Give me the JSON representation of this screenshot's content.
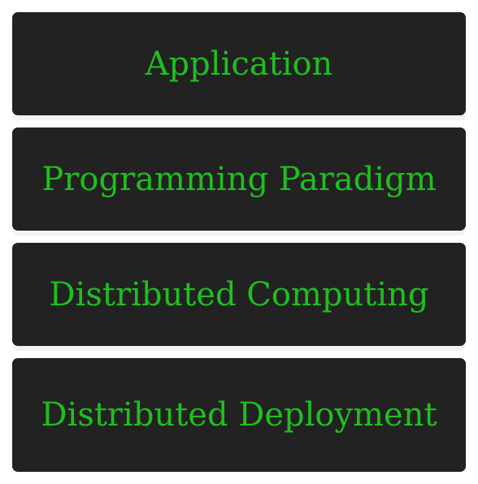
{
  "diagram": {
    "layers": [
      {
        "label": "Application"
      },
      {
        "label": "Programming Paradigm"
      },
      {
        "label": "Distributed Computing"
      },
      {
        "label": "Distributed Deployment"
      }
    ]
  },
  "colors": {
    "block_fill": "#222222",
    "label_text": "#1fbf1f",
    "background": "#ffffff"
  }
}
